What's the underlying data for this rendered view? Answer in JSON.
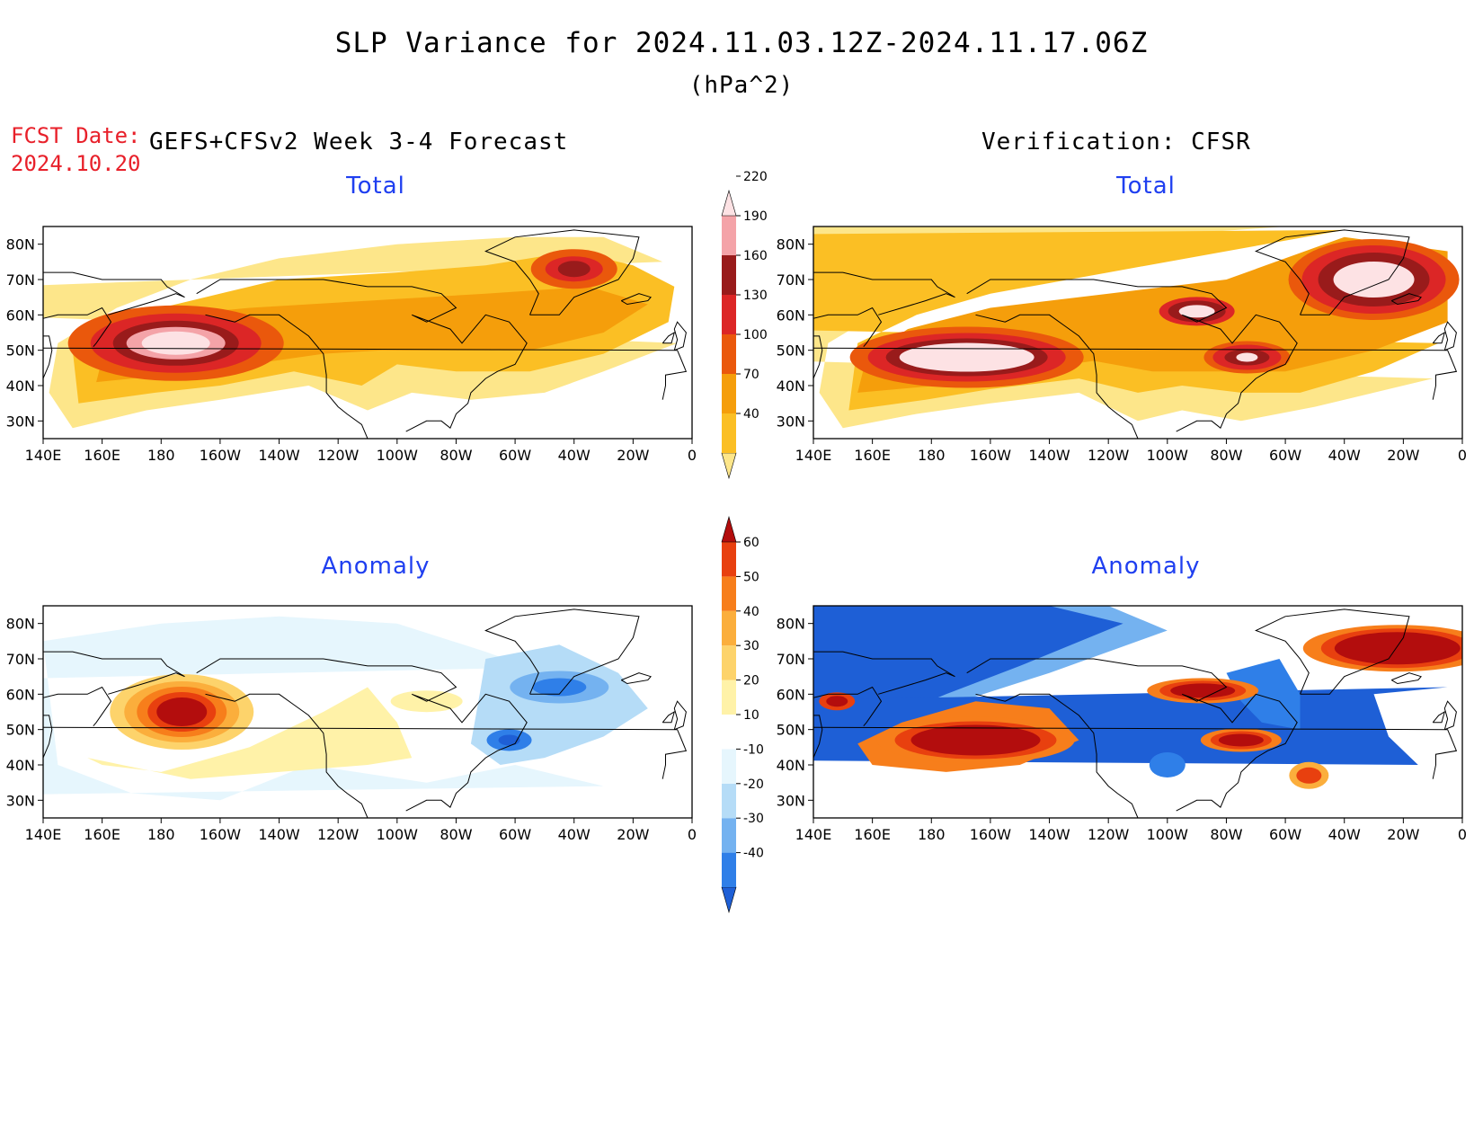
{
  "title": "SLP Variance for 2024.11.03.12Z-2024.11.17.06Z",
  "units": "(hPa^2)",
  "fcst_date_label": "FCST Date:",
  "fcst_date_value": "2024.10.20",
  "forecast_title": "GEFS+CFSv2 Week 3-4 Forecast",
  "verification_title": "Verification: CFSR",
  "panels": [
    {
      "id": "forecast-total",
      "title": "Total"
    },
    {
      "id": "verification-total",
      "title": "Total"
    },
    {
      "id": "forecast-anomaly",
      "title": "Anomaly"
    },
    {
      "id": "verification-anomaly",
      "title": "Anomaly"
    }
  ],
  "axes": {
    "lon_labels": [
      "140E",
      "160E",
      "180",
      "160W",
      "140W",
      "120W",
      "100W",
      "80W",
      "60W",
      "40W",
      "20W",
      "0"
    ],
    "lat_labels": [
      "80N",
      "70N",
      "60N",
      "50N",
      "40N",
      "30N"
    ]
  },
  "colorbar_total": {
    "levels": [
      "40",
      "70",
      "100",
      "130",
      "160",
      "190",
      "220"
    ],
    "colors": [
      "#fde68a",
      "#fbbf24",
      "#f59e0b",
      "#ea580c",
      "#dc2626",
      "#991b1b",
      "#f4a3a8",
      "#fde2e4"
    ]
  },
  "colorbar_anomaly": {
    "levels": [
      "-40",
      "-30",
      "-20",
      "-10",
      "10",
      "20",
      "30",
      "40",
      "50",
      "60"
    ],
    "colors": [
      "#1e5fd6",
      "#2f7fe8",
      "#74b2f0",
      "#b5dcf7",
      "#e6f6fd",
      "#ffffff",
      "#fff2a8",
      "#fdd36b",
      "#fbae3c",
      "#f77e1b",
      "#e8400f",
      "#b30d0d"
    ]
  },
  "chart_data": {
    "type": "heatmap",
    "title": "SLP Variance for 2024.11.03.12Z-2024.11.17.06Z",
    "units": "(hPa^2)",
    "x_axis": "longitude 140E to 0",
    "y_axis": "latitude 25N to 85N",
    "panels": [
      {
        "name": "GEFS+CFSv2 Week 3-4 Forecast — Total",
        "features": [
          {
            "lon": -175,
            "lat": 52,
            "value": 220
          },
          {
            "lon": -40,
            "lat": 74,
            "value": 160
          },
          {
            "lon": -80,
            "lat": 55,
            "value": 100
          }
        ]
      },
      {
        "name": "Verification: CFSR — Total",
        "features": [
          {
            "lon": -170,
            "lat": 47,
            "value": 220
          },
          {
            "lon": -35,
            "lat": 72,
            "value": 220
          },
          {
            "lon": -70,
            "lat": 48,
            "value": 190
          },
          {
            "lon": -90,
            "lat": 62,
            "value": 190
          }
        ]
      },
      {
        "name": "GEFS+CFSv2 Week 3-4 Forecast — Anomaly",
        "features": [
          {
            "lon": -172,
            "lat": 55,
            "value": 60
          },
          {
            "lon": -50,
            "lat": 62,
            "value": -30
          },
          {
            "lon": -60,
            "lat": 46,
            "value": -40
          }
        ]
      },
      {
        "name": "Verification: CFSR — Anomaly",
        "features": [
          {
            "lon": -165,
            "lat": 47,
            "value": 60
          },
          {
            "lon": -25,
            "lat": 72,
            "value": 60
          },
          {
            "lon": -170,
            "lat": 75,
            "value": -40
          },
          {
            "lon": -10,
            "lat": 52,
            "value": -40
          }
        ]
      }
    ]
  }
}
